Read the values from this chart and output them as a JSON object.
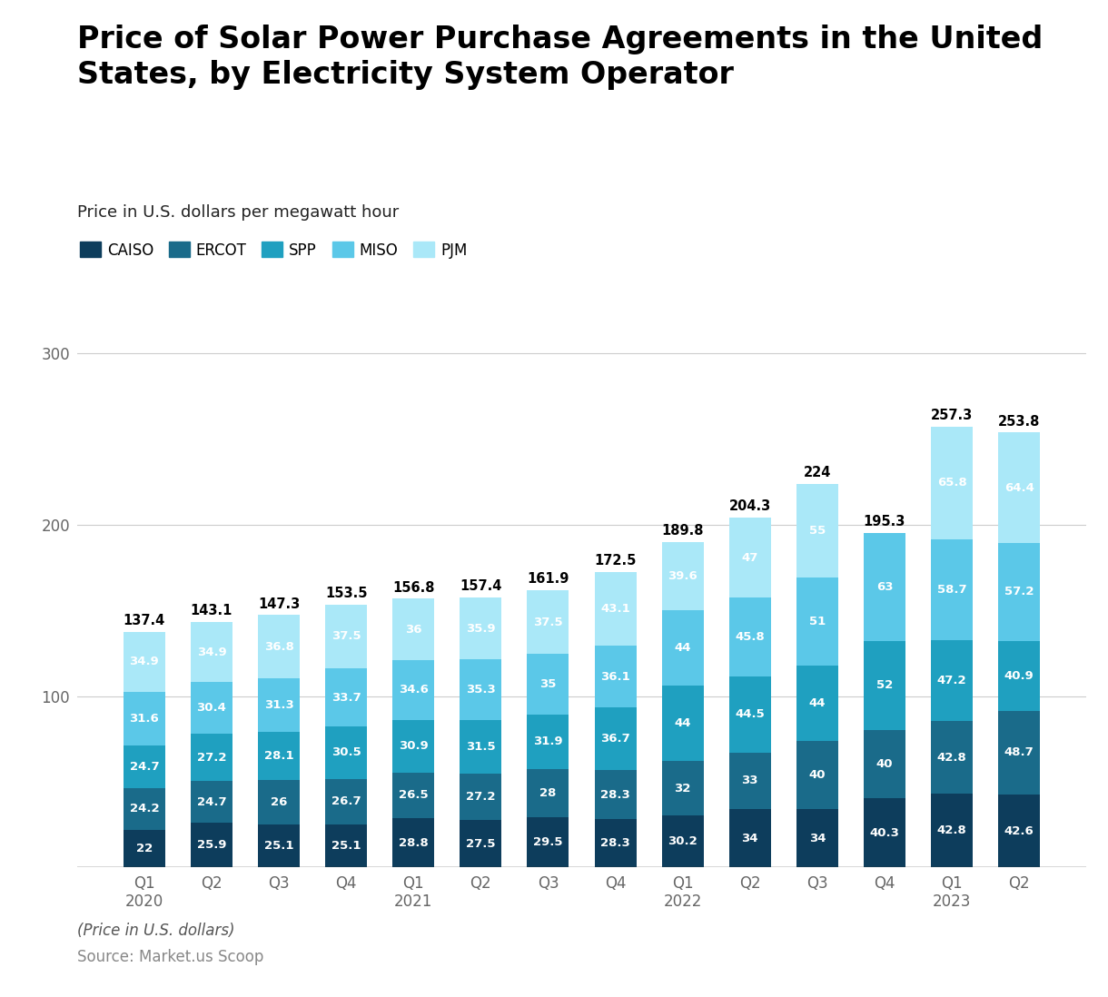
{
  "title": "Price of Solar Power Purchase Agreements in the United\nStates, by Electricity System Operator",
  "subtitle": "Price in U.S. dollars per megawatt hour",
  "footer_note": "(Price in U.S. dollars)",
  "footer_source": "Source: Market.us Scoop",
  "categories": [
    "Q1\n2020",
    "Q2",
    "Q3",
    "Q4",
    "Q1\n2021",
    "Q2",
    "Q3",
    "Q4",
    "Q1\n2022",
    "Q2",
    "Q3",
    "Q4",
    "Q1\n2023",
    "Q2"
  ],
  "series": {
    "CAISO": [
      22.0,
      25.9,
      25.1,
      25.1,
      28.8,
      27.5,
      29.5,
      28.3,
      30.2,
      34.0,
      34.0,
      40.3,
      42.8,
      42.6
    ],
    "ERCOT": [
      24.2,
      24.7,
      26.0,
      26.7,
      26.5,
      27.2,
      28.0,
      28.3,
      32.0,
      33.0,
      40.0,
      40.0,
      42.8,
      48.7
    ],
    "SPP": [
      24.7,
      27.2,
      28.1,
      30.5,
      30.9,
      31.5,
      31.9,
      36.7,
      44.0,
      44.5,
      44.0,
      52.0,
      47.2,
      40.9
    ],
    "MISO": [
      31.6,
      30.4,
      31.3,
      33.7,
      34.6,
      35.3,
      35.0,
      36.1,
      44.0,
      45.8,
      51.0,
      63.0,
      58.7,
      57.2
    ],
    "PJM": [
      34.9,
      34.9,
      36.8,
      37.5,
      36.0,
      35.9,
      37.5,
      43.1,
      39.6,
      47.0,
      55.0,
      0.0,
      65.8,
      64.4
    ]
  },
  "totals": [
    137.4,
    143.1,
    147.3,
    153.5,
    156.8,
    157.4,
    161.9,
    172.5,
    189.8,
    204.3,
    224,
    195.3,
    257.3,
    253.8
  ],
  "colors": {
    "CAISO": "#0d3d5c",
    "ERCOT": "#1a6b8a",
    "SPP": "#1fa0c0",
    "MISO": "#5bc8e8",
    "PJM": "#aae8f8"
  },
  "bar_width": 0.62,
  "ylim": [
    0,
    320
  ],
  "yticks": [
    100,
    200,
    300
  ],
  "background_color": "#ffffff",
  "grid_color": "#cccccc",
  "title_fontsize": 24,
  "subtitle_fontsize": 13,
  "legend_fontsize": 12,
  "tick_fontsize": 12
}
